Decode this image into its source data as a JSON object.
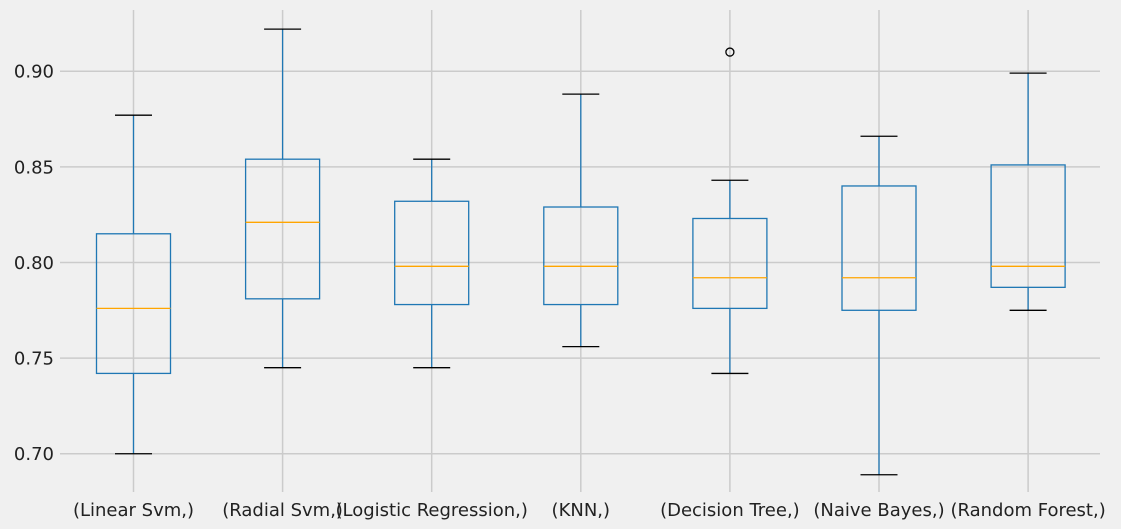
{
  "chart_data": {
    "type": "box",
    "title": "",
    "xlabel": "",
    "ylabel": "",
    "ylim": [
      0.68,
      0.932
    ],
    "yticks": [
      0.7,
      0.75,
      0.8,
      0.85,
      0.9
    ],
    "ytick_labels": [
      "0.70",
      "0.75",
      "0.80",
      "0.85",
      "0.90"
    ],
    "grid": true,
    "categories": [
      "(Linear Svm,)",
      "(Radial Svm,)",
      "(Logistic Regression,)",
      "(KNN,)",
      "(Decision Tree,)",
      "(Naive Bayes,)",
      "(Random Forest,)"
    ],
    "boxes": [
      {
        "whisker_low": 0.7,
        "q1": 0.742,
        "median": 0.776,
        "q3": 0.815,
        "whisker_high": 0.877,
        "outliers": []
      },
      {
        "whisker_low": 0.745,
        "q1": 0.781,
        "median": 0.821,
        "q3": 0.854,
        "whisker_high": 0.922,
        "outliers": []
      },
      {
        "whisker_low": 0.745,
        "q1": 0.778,
        "median": 0.798,
        "q3": 0.832,
        "whisker_high": 0.854,
        "outliers": []
      },
      {
        "whisker_low": 0.756,
        "q1": 0.778,
        "median": 0.798,
        "q3": 0.829,
        "whisker_high": 0.888,
        "outliers": []
      },
      {
        "whisker_low": 0.742,
        "q1": 0.776,
        "median": 0.792,
        "q3": 0.823,
        "whisker_high": 0.843,
        "outliers": [
          0.91
        ]
      },
      {
        "whisker_low": 0.689,
        "q1": 0.775,
        "median": 0.792,
        "q3": 0.84,
        "whisker_high": 0.866,
        "outliers": []
      },
      {
        "whisker_low": 0.775,
        "q1": 0.787,
        "median": 0.798,
        "q3": 0.851,
        "whisker_high": 0.899,
        "outliers": []
      }
    ],
    "colors": {
      "background": "#f0f0f0",
      "grid": "#cbcbcb",
      "box": "#1f77b4",
      "whisker": "#1f77b4",
      "cap": "#000000",
      "median": "#ffa500",
      "flier": "#000000"
    }
  }
}
